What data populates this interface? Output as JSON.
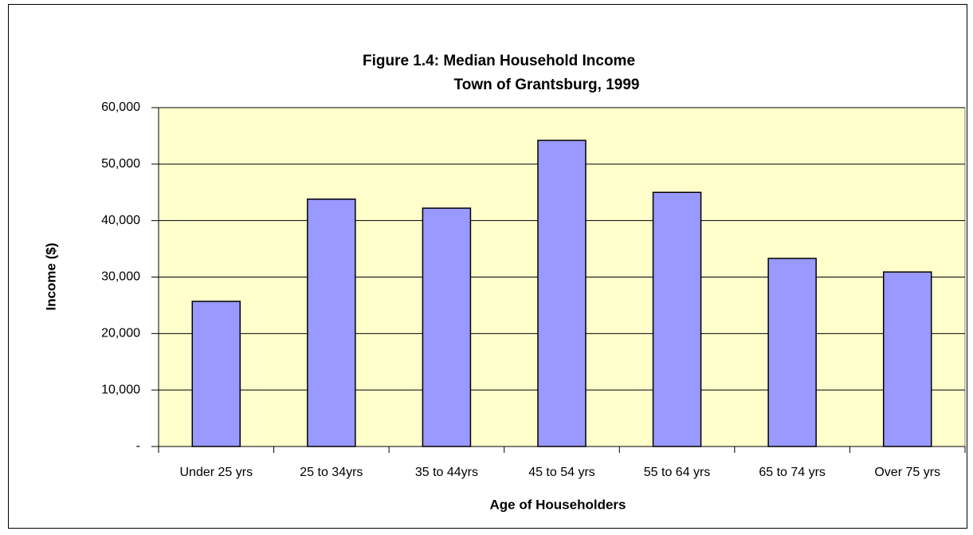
{
  "chart_data": {
    "type": "bar",
    "title": [
      "Figure 1.4: Median Household Income",
      "Town of Grantsburg, 1999"
    ],
    "x_label": "Age of Householders",
    "y_label": "Income ($)",
    "categories": [
      "Under 25 yrs",
      "25 to 34yrs",
      "35 to 44yrs",
      "45 to 54 yrs",
      "55 to 64 yrs",
      "65 to 74 yrs",
      "Over 75 yrs"
    ],
    "values": [
      25700,
      43800,
      42200,
      54200,
      45000,
      33300,
      30900
    ],
    "color": "#9999ff",
    "ylim": [
      0,
      60000
    ],
    "yticks": [
      {
        "value": 0,
        "label": "-"
      },
      {
        "value": 10000,
        "label": "10,000"
      },
      {
        "value": 20000,
        "label": "20,000"
      },
      {
        "value": 30000,
        "label": "30,000"
      },
      {
        "value": 40000,
        "label": "40,000"
      },
      {
        "value": 50000,
        "label": "50,000"
      },
      {
        "value": 60000,
        "label": "60,000"
      }
    ],
    "grid": true
  }
}
